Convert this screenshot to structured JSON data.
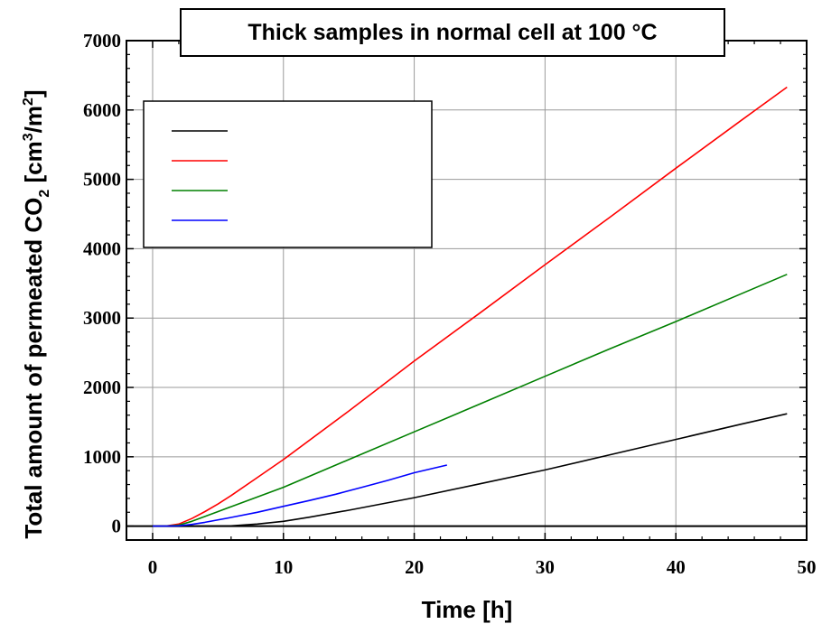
{
  "chart_data": {
    "type": "line",
    "title": "Thick samples in normal cell at 100 °C",
    "xlabel": "Time [h]",
    "ylabel_main": "Total amount of permeated CO",
    "ylabel_sub": "2",
    "ylabel_unit_open": " [cm",
    "ylabel_unit_sup1": "3",
    "ylabel_unit_mid": "/m",
    "ylabel_unit_sup2": "2",
    "ylabel_unit_close": "]",
    "xlim": [
      -2,
      50
    ],
    "ylim": [
      -200,
      7000
    ],
    "xticks": [
      0,
      10,
      20,
      30,
      40,
      50
    ],
    "yticks": [
      0,
      1000,
      2000,
      3000,
      4000,
      5000,
      6000,
      7000
    ],
    "grid": true,
    "legend": {
      "placement": "top-left",
      "entries": [
        "",
        "",
        "",
        ""
      ]
    },
    "series": [
      {
        "color": "#000000",
        "x": [
          0,
          2,
          4,
          6,
          8,
          10,
          12,
          15,
          20,
          25,
          30,
          35,
          40,
          45,
          48.5
        ],
        "y": [
          0,
          0,
          0,
          5,
          30,
          70,
          130,
          230,
          410,
          610,
          810,
          1030,
          1250,
          1470,
          1620
        ]
      },
      {
        "color": "#ff0000",
        "x": [
          0,
          1,
          2,
          3,
          4,
          5,
          6,
          8,
          10,
          15,
          20,
          25,
          30,
          35,
          40,
          45,
          48.5
        ],
        "y": [
          0,
          0,
          30,
          110,
          210,
          320,
          440,
          700,
          960,
          1660,
          2380,
          3070,
          3770,
          4460,
          5160,
          5850,
          6330
        ]
      },
      {
        "color": "#008000",
        "x": [
          0,
          1,
          2,
          3,
          4,
          5,
          6,
          8,
          10,
          15,
          20,
          25,
          30,
          35,
          40,
          45,
          48.5
        ],
        "y": [
          0,
          0,
          15,
          70,
          140,
          210,
          280,
          420,
          560,
          960,
          1360,
          1760,
          2160,
          2560,
          2950,
          3350,
          3630
        ]
      },
      {
        "color": "#0000ff",
        "x": [
          0,
          1,
          2,
          3,
          4,
          6,
          8,
          10,
          12,
          14,
          16,
          18,
          20,
          22.5
        ],
        "y": [
          0,
          0,
          5,
          25,
          55,
          125,
          200,
          285,
          370,
          460,
          560,
          660,
          770,
          880
        ]
      }
    ]
  }
}
